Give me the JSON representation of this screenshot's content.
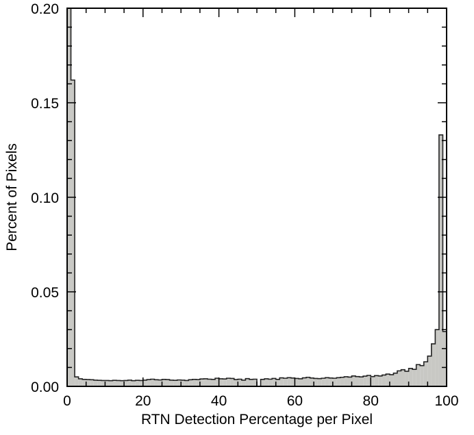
{
  "chart_data": {
    "type": "bar",
    "subtype": "histogram",
    "title": "",
    "xlabel": "RTN Detection Percentage per Pixel",
    "ylabel": "Percent of Pixels",
    "xlim": [
      0,
      100
    ],
    "ylim": [
      0,
      0.2
    ],
    "x_ticks": [
      0,
      20,
      40,
      60,
      80,
      100
    ],
    "x_tick_labels": [
      "0",
      "20",
      "40",
      "60",
      "80",
      "100"
    ],
    "y_ticks": [
      0,
      0.05,
      0.1,
      0.15,
      0.2
    ],
    "y_tick_labels": [
      "0.00",
      "0.05",
      "0.10",
      "0.15",
      "0.20"
    ],
    "bin_width": 1,
    "bin_starts": [
      0,
      1,
      2,
      3,
      4,
      5,
      6,
      7,
      8,
      9,
      10,
      11,
      12,
      13,
      14,
      15,
      16,
      17,
      18,
      19,
      20,
      21,
      22,
      23,
      24,
      25,
      26,
      27,
      28,
      29,
      30,
      31,
      32,
      33,
      34,
      35,
      36,
      37,
      38,
      39,
      40,
      41,
      42,
      43,
      44,
      45,
      46,
      47,
      48,
      49,
      50,
      51,
      52,
      53,
      54,
      55,
      56,
      57,
      58,
      59,
      60,
      61,
      62,
      63,
      64,
      65,
      66,
      67,
      68,
      69,
      70,
      71,
      72,
      73,
      74,
      75,
      76,
      77,
      78,
      79,
      80,
      81,
      82,
      83,
      84,
      85,
      86,
      87,
      88,
      89,
      90,
      91,
      92,
      93,
      94,
      95,
      96,
      97,
      98,
      99
    ],
    "values": [
      0.2,
      0.162,
      0.005,
      0.004,
      0.0037,
      0.0036,
      0.0035,
      0.0033,
      0.0032,
      0.0031,
      0.0031,
      0.003,
      0.0032,
      0.0031,
      0.003,
      0.0031,
      0.0033,
      0.003,
      0.0032,
      0.0031,
      0.0033,
      0.0036,
      0.0038,
      0.0035,
      0.0034,
      0.0037,
      0.0036,
      0.0033,
      0.0032,
      0.0034,
      0.0033,
      0.0031,
      0.0035,
      0.0037,
      0.0036,
      0.0039,
      0.004,
      0.0038,
      0.0037,
      0.0043,
      0.004,
      0.0039,
      0.0043,
      0.0042,
      0.0036,
      0.0038,
      0.0033,
      0.0041,
      0.0037,
      0.0038,
      0.0,
      0.0037,
      0.004,
      0.0038,
      0.0042,
      0.0037,
      0.0045,
      0.0043,
      0.0046,
      0.0044,
      0.0042,
      0.004,
      0.0045,
      0.0048,
      0.0044,
      0.0042,
      0.0041,
      0.0043,
      0.0046,
      0.0044,
      0.0043,
      0.0046,
      0.0048,
      0.0051,
      0.0049,
      0.0055,
      0.0052,
      0.005,
      0.0054,
      0.0058,
      0.0052,
      0.0057,
      0.0055,
      0.006,
      0.0065,
      0.0062,
      0.007,
      0.0082,
      0.0088,
      0.008,
      0.0095,
      0.009,
      0.0115,
      0.011,
      0.013,
      0.016,
      0.0225,
      0.03,
      0.133,
      0.029
    ],
    "fill_color": "#c8c8c4",
    "line_color": "#222222",
    "grid": false,
    "legend": "none"
  }
}
